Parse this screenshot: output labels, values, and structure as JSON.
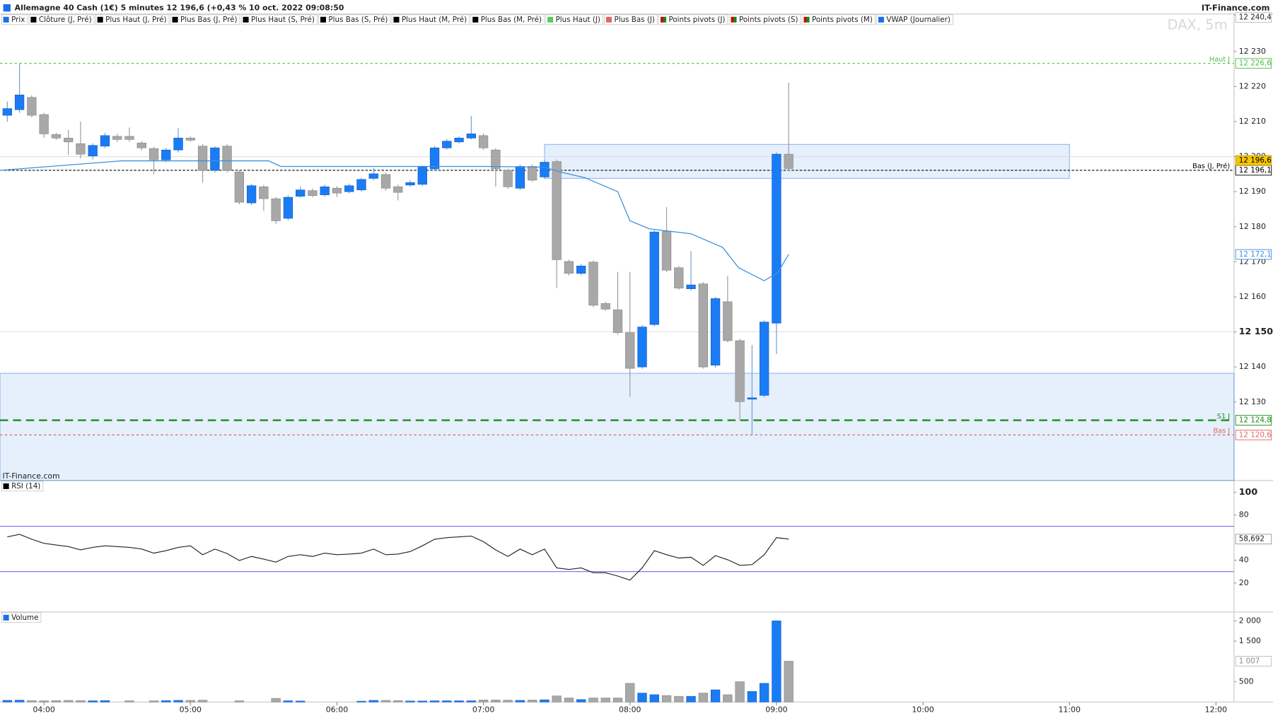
{
  "header": {
    "title": "Allemagne 40 Cash (1€) 5 minutes 12 196,6 (+0,43 % 10 oct. 2022 09:08:50",
    "brand": "IT-Finance.com"
  },
  "chart_data": [
    {
      "type": "candlestick",
      "legend": [
        {
          "name": "Prix",
          "color": "#1a6fe8"
        },
        {
          "name": "Clôture (J, Pré)",
          "color": "#000000"
        },
        {
          "name": "Plus Haut (J, Pré)",
          "color": "#000000"
        },
        {
          "name": "Plus Bas (J, Pré)",
          "color": "#000000"
        },
        {
          "name": "Plus Haut (S, Pré)",
          "color": "#000000"
        },
        {
          "name": "Plus Bas (S, Pré)",
          "color": "#000000"
        },
        {
          "name": "Plus Haut (M, Pré)",
          "color": "#000000"
        },
        {
          "name": "Plus Bas (M, Pré)",
          "color": "#000000"
        },
        {
          "name": "Plus Haut (J)",
          "color": "#5cc85c"
        },
        {
          "name": "Plus Bas (J)",
          "color": "#e06666"
        },
        {
          "name": "Points pivots (J)",
          "color": [
            "#d00000",
            "#138a13"
          ]
        },
        {
          "name": "Points pivots (S)",
          "color": [
            "#d00000",
            "#138a13"
          ]
        },
        {
          "name": "Points pivots (M)",
          "color": [
            "#d00000",
            "#138a13"
          ]
        },
        {
          "name": "VWAP (Journalier)",
          "color": "#1a6fe8"
        }
      ],
      "watermark": "DAX, 5m",
      "source": "IT-Finance.com",
      "up_color": "#1a7cf5",
      "down_color": "#a8a8a8",
      "x": [
        225,
        230,
        235,
        240,
        245,
        250,
        255,
        260,
        265,
        270,
        275,
        280,
        285,
        290,
        295,
        300,
        305,
        310,
        315,
        320,
        325,
        330,
        335,
        340,
        345,
        350,
        355,
        360,
        365,
        370,
        375,
        380,
        385,
        390,
        395,
        400,
        405,
        410,
        415,
        420,
        425,
        430,
        435,
        440,
        445,
        450,
        455,
        460,
        465,
        470,
        475,
        480,
        485,
        490,
        495,
        500,
        505,
        510,
        515,
        520,
        525,
        530,
        535,
        540,
        545
      ],
      "open": [
        12211.8,
        12213.4,
        12216.9,
        12212.0,
        12206.3,
        12205.3,
        12203.7,
        12200.2,
        12203.0,
        12205.8,
        12205.8,
        12203.9,
        12202.3,
        12199.1,
        12201.9,
        12205.3,
        12203.0,
        12196.1,
        12203.0,
        12195.6,
        12186.8,
        12191.4,
        12188.0,
        12182.4,
        12188.7,
        12190.3,
        12189.1,
        12191.0,
        12190.0,
        12190.5,
        12193.8,
        12194.9,
        12191.4,
        12191.9,
        12192.1,
        12196.5,
        12202.5,
        12204.2,
        12205.3,
        12206.0,
        12201.9,
        12196.1,
        12191.0,
        12197.2,
        12194.2,
        12198.6,
        12170.1,
        12166.7,
        12169.9,
        12158.1,
        12156.3,
        12149.8,
        12140.0,
        12152.1,
        12178.7,
        12168.3,
        12162.3,
        12163.7,
        12140.5,
        12158.6,
        12147.5,
        12130.8,
        12131.9,
        12152.5,
        12200.7
      ],
      "high": [
        12215.7,
        12226.6,
        12217.5,
        12212.5,
        12206.8,
        12207.6,
        12210.0,
        12203.8,
        12206.8,
        12206.5,
        12208.3,
        12204.4,
        12202.8,
        12202.5,
        12208.1,
        12205.8,
        12203.6,
        12203.0,
        12203.5,
        12196.1,
        12192.2,
        12191.9,
        12188.5,
        12189.0,
        12191.5,
        12190.9,
        12192.0,
        12191.5,
        12192.3,
        12194.0,
        12196.8,
        12195.5,
        12192.0,
        12193.2,
        12197.5,
        12203.0,
        12205.0,
        12205.8,
        12211.6,
        12206.6,
        12202.4,
        12196.6,
        12197.7,
        12197.8,
        12199.0,
        12199.2,
        12170.6,
        12169.3,
        12170.4,
        12158.6,
        12167.1,
        12167.1,
        12151.9,
        12179.0,
        12185.6,
        12168.8,
        12173.0,
        12164.2,
        12160.0,
        12166.0,
        12148.0,
        12146.3,
        12153.3,
        12201.2,
        12221.1
      ],
      "low": [
        12210.0,
        12212.5,
        12211.2,
        12205.4,
        12204.8,
        12200.5,
        12199.5,
        12199.2,
        12202.4,
        12204.2,
        12204.2,
        12201.8,
        12194.9,
        12198.4,
        12201.2,
        12204.2,
        12192.6,
        12195.5,
        12195.5,
        12186.4,
        12186.2,
        12184.5,
        12180.8,
        12181.8,
        12188.2,
        12188.4,
        12188.6,
        12188.5,
        12189.5,
        12190.0,
        12193.3,
        12190.3,
        12187.5,
        12191.4,
        12191.6,
        12196.0,
        12202.0,
        12203.8,
        12204.9,
        12201.9,
        12191.4,
        12190.8,
        12190.5,
        12192.8,
        12193.7,
        12162.5,
        12166.1,
        12166.2,
        12157.0,
        12156.0,
        12149.2,
        12131.5,
        12139.5,
        12151.6,
        12167.1,
        12162.0,
        12161.8,
        12139.5,
        12139.8,
        12147.0,
        12124.8,
        12120.6,
        12131.4,
        12143.7,
        12196.0
      ],
      "close": [
        12213.7,
        12217.6,
        12211.8,
        12206.5,
        12205.3,
        12204.2,
        12200.7,
        12203.2,
        12206.0,
        12204.9,
        12204.9,
        12202.5,
        12199.1,
        12201.9,
        12205.3,
        12204.7,
        12196.1,
        12202.5,
        12196.1,
        12187.0,
        12191.7,
        12188.0,
        12181.7,
        12188.4,
        12190.5,
        12188.9,
        12191.4,
        12189.6,
        12191.7,
        12193.5,
        12195.1,
        12191.0,
        12189.8,
        12192.6,
        12197.0,
        12202.5,
        12204.4,
        12205.3,
        12206.5,
        12202.5,
        12196.5,
        12191.4,
        12197.2,
        12193.3,
        12198.4,
        12170.6,
        12166.7,
        12168.8,
        12157.6,
        12156.5,
        12149.8,
        12139.6,
        12151.4,
        12178.5,
        12167.6,
        12162.5,
        12163.4,
        12140.0,
        12159.5,
        12147.5,
        12130.1,
        12131.2,
        12152.8,
        12200.7,
        12196.6
      ],
      "last_label": "12 196,6",
      "xlim": [
        222,
        727.4
      ],
      "ylim": [
        12107.6,
        12240.7
      ],
      "yticks": [
        {
          "value": 12130,
          "label": "12 130"
        },
        {
          "value": 12140,
          "label": "12 140"
        },
        {
          "value": 12150,
          "label": "12 150"
        },
        {
          "value": 12160,
          "label": "12 160"
        },
        {
          "value": 12170,
          "label": "12 170"
        },
        {
          "value": 12180,
          "label": "12 180"
        },
        {
          "value": 12190,
          "label": "12 190"
        },
        {
          "value": 12200,
          "label": "12 200"
        },
        {
          "value": 12210,
          "label": "12 210"
        },
        {
          "value": 12220,
          "label": "12 220"
        },
        {
          "value": 12230,
          "label": "12 230"
        }
      ],
      "bold_tick": 12150,
      "gridlines": [
        12150,
        12200
      ],
      "top_label": {
        "value": 12240.4,
        "label": "12 240,4"
      },
      "levels": [
        {
          "name": "Haut J",
          "value": 12226.6,
          "label": "12 226,6",
          "color": "#4cbf4c",
          "dash": "3,3",
          "width": 1
        },
        {
          "name": "Bas (J, Pré)",
          "value": 12196.1,
          "label": "12 196,1",
          "color": "#000000",
          "dash": "3,2",
          "width": 1
        },
        {
          "name": "S1 J",
          "value": 12124.8,
          "label": "12 124,8",
          "color": "#1e8a1e",
          "dash": "10,6",
          "width": 2
        },
        {
          "name": "Bas J",
          "value": 12120.6,
          "label": "12 120,6",
          "color": "#e06666",
          "dash": "3,3",
          "width": 1
        }
      ],
      "zones": [
        {
          "x": [
            445,
            660
          ],
          "y": [
            12193.8,
            12203.5
          ]
        },
        {
          "x": [
            222,
            727.4
          ],
          "y": [
            12107.6,
            12138.2
          ]
        }
      ],
      "zone_color": "#1a6fe8",
      "vwap": {
        "color": "#3d8fe0",
        "x": [
          222,
          272,
          332,
          337,
          421.5,
          445,
          451.5,
          461.5,
          475,
          480,
          488,
          505,
          518,
          524.5,
          535,
          540.5,
          545
        ],
        "values": [
          12196.1,
          12198.8,
          12198.8,
          12197.2,
          12197.2,
          12197.0,
          12195.6,
          12194.0,
          12190.0,
          12181.7,
          12179.4,
          12178.0,
          12174.1,
          12168.3,
          12164.6,
          12166.9,
          12172.1
        ],
        "last_label": "12 172,1"
      }
    },
    {
      "type": "line",
      "legend": [
        {
          "name": "RSI (14)",
          "color": "#000000"
        }
      ],
      "color": "#222222",
      "x": [
        225,
        230,
        235,
        240,
        245,
        250,
        255,
        260,
        265,
        270,
        275,
        280,
        285,
        290,
        295,
        300,
        305,
        310,
        315,
        320,
        325,
        330,
        335,
        340,
        345,
        350,
        355,
        360,
        365,
        370,
        375,
        380,
        385,
        390,
        395,
        400,
        405,
        410,
        415,
        420,
        425,
        430,
        435,
        440,
        445,
        450,
        455,
        460,
        465,
        470,
        475,
        480,
        485,
        490,
        495,
        500,
        505,
        510,
        515,
        520,
        525,
        530,
        535,
        540,
        545
      ],
      "values": [
        60.7,
        62.9,
        58.6,
        55.0,
        53.5,
        52.1,
        49.2,
        51.4,
        52.8,
        52.1,
        51.4,
        50.0,
        46.3,
        48.5,
        51.4,
        52.8,
        44.9,
        49.9,
        46.0,
        39.8,
        43.4,
        41.0,
        38.4,
        43.4,
        44.9,
        43.4,
        46.3,
        44.9,
        45.5,
        46.3,
        49.9,
        44.9,
        45.5,
        47.7,
        52.8,
        58.6,
        60.0,
        60.7,
        61.4,
        56.4,
        49.2,
        43.4,
        49.9,
        44.9,
        49.9,
        33.3,
        31.9,
        33.3,
        29.0,
        29.0,
        26.1,
        22.5,
        33.3,
        48.5,
        44.9,
        42.0,
        42.7,
        35.5,
        44.1,
        40.5,
        35.5,
        36.2,
        44.9,
        60.0,
        58.692
      ],
      "last_label": "58,692",
      "xlim": [
        222,
        727.4
      ],
      "ylim": [
        -5.6,
        110.4
      ],
      "yticks": [
        20,
        40,
        80,
        100
      ],
      "bold_tick": 100,
      "levels": [
        70,
        30
      ],
      "level_color": "#7b68ee"
    },
    {
      "type": "bar",
      "legend": [
        {
          "name": "Volume",
          "color": "#1a6fe8"
        }
      ],
      "x": [
        225,
        230,
        235,
        240,
        245,
        250,
        255,
        260,
        265,
        270,
        275,
        280,
        285,
        290,
        295,
        300,
        305,
        310,
        315,
        320,
        325,
        330,
        335,
        340,
        345,
        350,
        355,
        360,
        365,
        370,
        375,
        380,
        385,
        390,
        395,
        400,
        405,
        410,
        415,
        420,
        425,
        430,
        435,
        440,
        445,
        450,
        455,
        460,
        465,
        470,
        475,
        480,
        485,
        490,
        495,
        500,
        505,
        510,
        515,
        520,
        525,
        530,
        535,
        540,
        545
      ],
      "values": [
        40,
        45,
        35,
        30,
        35,
        40,
        35,
        30,
        35,
        0,
        30,
        0,
        30,
        35,
        40,
        40,
        45,
        0,
        0,
        30,
        0,
        0,
        90,
        30,
        25,
        0,
        0,
        0,
        0,
        20,
        40,
        40,
        35,
        25,
        25,
        30,
        30,
        30,
        30,
        50,
        50,
        45,
        40,
        50,
        55,
        150,
        100,
        60,
        100,
        100,
        100,
        460,
        220,
        180,
        160,
        140,
        140,
        220,
        300,
        180,
        500,
        260,
        460,
        2000,
        1007
      ],
      "last_label": "1 007",
      "xlim": [
        222,
        727.4
      ],
      "ylim": [
        0,
        2220
      ],
      "yticks": [
        500,
        {
          "value": 1500,
          "label": "1 500"
        },
        {
          "value": 2000,
          "label": "2 000"
        }
      ],
      "xticks": [
        {
          "value": 240,
          "label": "04:00"
        },
        {
          "value": 300,
          "label": "05:00"
        },
        {
          "value": 360,
          "label": "06:00"
        },
        {
          "value": 420,
          "label": "07:00"
        },
        {
          "value": 480,
          "label": "08:00"
        },
        {
          "value": 540,
          "label": "09:00"
        },
        {
          "value": 600,
          "label": "10:00"
        },
        {
          "value": 660,
          "label": "11:00"
        },
        {
          "value": 720,
          "label": "12:00"
        }
      ]
    }
  ]
}
